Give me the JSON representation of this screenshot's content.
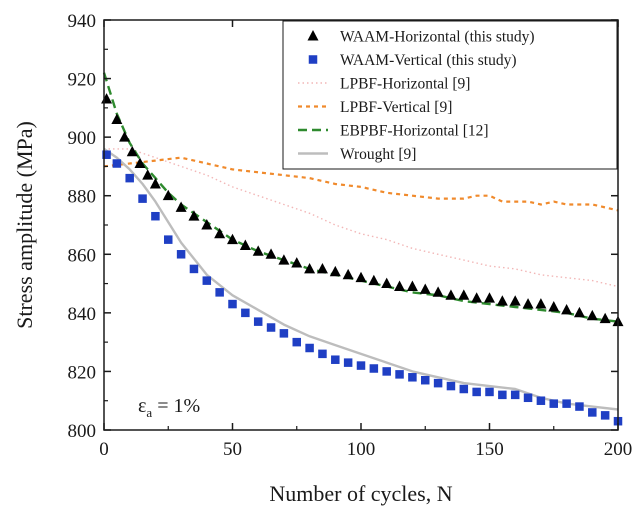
{
  "chart_data": {
    "type": "scatter",
    "xlabel": "Number of cycles, N",
    "ylabel": "Stress amplitude (MPa)",
    "xlim": [
      0,
      200
    ],
    "ylim": [
      800,
      940
    ],
    "xticks": [
      0,
      50,
      100,
      150,
      200
    ],
    "yticks": [
      800,
      820,
      840,
      860,
      880,
      900,
      920,
      940
    ],
    "annotation": {
      "symbol": "ε",
      "subscript": "a",
      "rest": " = 1%"
    },
    "legend": {
      "placement": "top-right"
    },
    "series": [
      {
        "name": "WAAM-Horizontal (this study)",
        "style": "triangle-markers",
        "color": "#000000",
        "x": [
          1,
          5,
          8,
          11,
          14,
          17,
          20,
          25,
          30,
          35,
          40,
          45,
          50,
          55,
          60,
          65,
          70,
          75,
          80,
          85,
          90,
          95,
          100,
          105,
          110,
          115,
          120,
          125,
          130,
          135,
          140,
          145,
          150,
          155,
          160,
          165,
          170,
          175,
          180,
          185,
          190,
          195,
          200
        ],
        "y": [
          913,
          906,
          900,
          895,
          891,
          887,
          884,
          880,
          876,
          873,
          870,
          867,
          865,
          863,
          861,
          860,
          858,
          857,
          855,
          855,
          854,
          853,
          852,
          851,
          850,
          849,
          849,
          848,
          847,
          846,
          846,
          845,
          845,
          844,
          844,
          843,
          843,
          842,
          841,
          840,
          839,
          838,
          837
        ]
      },
      {
        "name": "WAAM-Vertical (this study)",
        "style": "square-markers",
        "color": "#1f3fc4",
        "x": [
          1,
          5,
          10,
          15,
          20,
          25,
          30,
          35,
          40,
          45,
          50,
          55,
          60,
          65,
          70,
          75,
          80,
          85,
          90,
          95,
          100,
          105,
          110,
          115,
          120,
          125,
          130,
          135,
          140,
          145,
          150,
          155,
          160,
          165,
          170,
          175,
          180,
          185,
          190,
          195,
          200
        ],
        "y": [
          894,
          891,
          886,
          879,
          873,
          865,
          860,
          855,
          851,
          847,
          843,
          840,
          837,
          835,
          833,
          830,
          828,
          826,
          824,
          823,
          822,
          821,
          820,
          819,
          818,
          817,
          816,
          815,
          814,
          813,
          813,
          812,
          812,
          811,
          810,
          809,
          809,
          808,
          806,
          805,
          803
        ]
      },
      {
        "name": "LPBF-Horizontal [9]",
        "style": "dotted-line",
        "color": "#f2b6b6",
        "x": [
          0,
          10,
          20,
          30,
          40,
          50,
          60,
          70,
          80,
          90,
          100,
          110,
          120,
          130,
          140,
          150,
          160,
          170,
          180,
          190,
          200
        ],
        "y": [
          896,
          896,
          893,
          890,
          887,
          883,
          880,
          877,
          874,
          870,
          867,
          865,
          862,
          860,
          858,
          856,
          855,
          853,
          852,
          851,
          849
        ]
      },
      {
        "name": "LPBF-Vertical [9]",
        "style": "short-dash-line",
        "color": "#f08a2c",
        "x": [
          0,
          10,
          20,
          30,
          40,
          50,
          60,
          70,
          80,
          90,
          100,
          110,
          120,
          130,
          140,
          145,
          150,
          155,
          160,
          165,
          170,
          175,
          180,
          185,
          190,
          195,
          200
        ],
        "y": [
          890,
          891,
          892,
          893,
          891,
          889,
          888,
          887,
          886,
          884,
          883,
          881,
          880,
          879,
          879,
          880,
          880,
          878,
          878,
          878,
          877,
          878,
          877,
          877,
          877,
          876,
          875
        ]
      },
      {
        "name": "EBPBF-Horizontal [12]",
        "style": "dash-line",
        "color": "#2e8a2e",
        "x": [
          0,
          5,
          10,
          15,
          20,
          25,
          30,
          40,
          50,
          60,
          70,
          80,
          90,
          100,
          110,
          120,
          130,
          140,
          150,
          160,
          170,
          180,
          190,
          200
        ],
        "y": [
          922,
          908,
          898,
          891,
          886,
          881,
          877,
          871,
          865,
          861,
          858,
          855,
          853,
          851,
          849,
          847,
          846,
          844,
          843,
          842,
          841,
          840,
          838,
          837
        ]
      },
      {
        "name": "Wrought [9]",
        "style": "solid-line",
        "color": "#bdbdbd",
        "x": [
          0,
          5,
          10,
          15,
          20,
          30,
          40,
          50,
          60,
          70,
          80,
          90,
          100,
          110,
          120,
          130,
          140,
          150,
          160,
          170,
          180,
          190,
          200
        ],
        "y": [
          896,
          893,
          889,
          884,
          878,
          864,
          853,
          846,
          841,
          836,
          832,
          829,
          826,
          823,
          820,
          818,
          816,
          815,
          814,
          811,
          809,
          808,
          807
        ]
      }
    ]
  }
}
